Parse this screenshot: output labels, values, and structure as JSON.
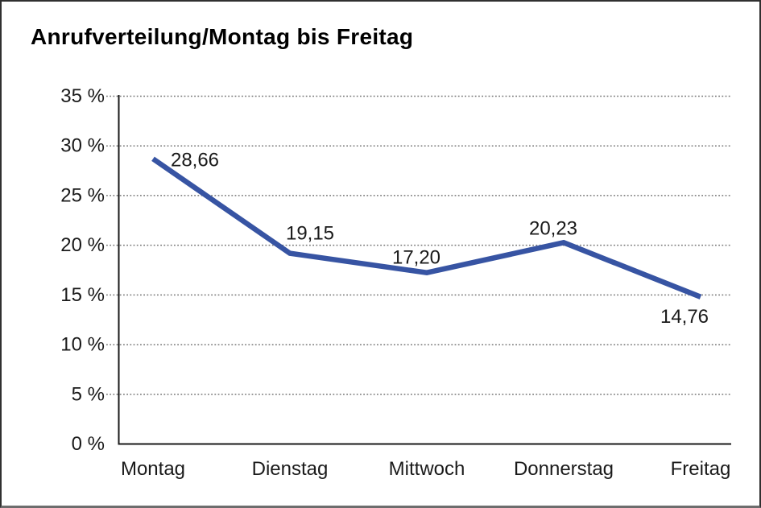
{
  "chart_data": {
    "type": "line",
    "title": "Anrufverteilung/Montag bis Freitag",
    "categories": [
      "Montag",
      "Dienstag",
      "Mittwoch",
      "Donnerstag",
      "Freitag"
    ],
    "series": [
      {
        "name": "Anrufverteilung",
        "values": [
          28.66,
          19.15,
          17.2,
          20.23,
          14.76
        ]
      }
    ],
    "point_labels": [
      "28,66",
      "19,15",
      "17,20",
      "20,23",
      "14,76"
    ],
    "ytick_values": [
      0,
      5,
      10,
      15,
      20,
      25,
      30,
      35
    ],
    "ytick_labels": [
      "0 %",
      "5 %",
      "10 %",
      "15 %",
      "20 %",
      "25 %",
      "30 %",
      "35 %"
    ],
    "ylim": [
      0,
      35
    ],
    "ytick_step": 5,
    "xlabel": "",
    "ylabel": "",
    "grid": "horizontal-dotted",
    "legend": "none",
    "colors": {
      "line": "#3754A3",
      "axis": "#1a1a1a",
      "gridline": "#777777",
      "text": "#1a1a1a",
      "frame_border": "#303030",
      "frame_border_bottom": "#6d6d6d",
      "background": "#ffffff"
    }
  }
}
